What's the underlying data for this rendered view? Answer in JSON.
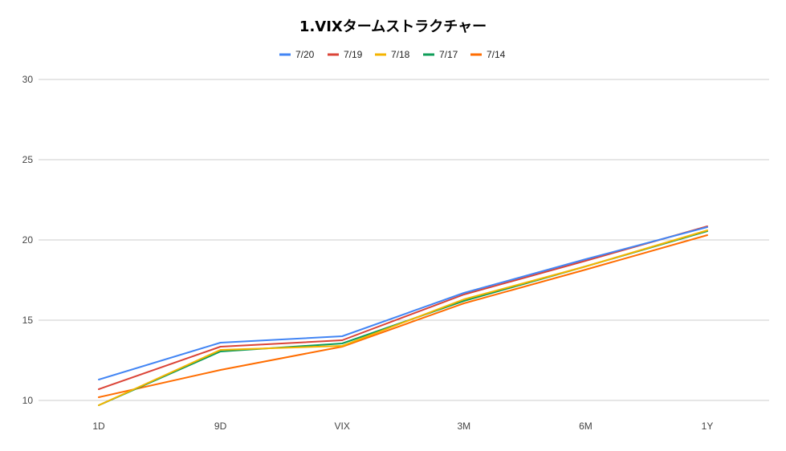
{
  "chart_data": {
    "type": "line",
    "title": "1.VIXタームストラクチャー",
    "categories": [
      "1D",
      "9D",
      "VIX",
      "3M",
      "6M",
      "1Y"
    ],
    "ylim": [
      10,
      30
    ],
    "yticks": [
      10,
      15,
      20,
      25,
      30
    ],
    "grid": true,
    "legend_position": "top",
    "series": [
      {
        "name": "7/20",
        "color": "#4285f4",
        "values": [
          11.3,
          13.6,
          14.0,
          16.7,
          18.8,
          20.8
        ]
      },
      {
        "name": "7/19",
        "color": "#db4437",
        "values": [
          10.7,
          13.35,
          13.75,
          16.6,
          18.7,
          20.85
        ]
      },
      {
        "name": "7/18",
        "color": "#f4b400",
        "values": [
          9.7,
          13.15,
          13.4,
          16.3,
          18.35,
          20.6
        ]
      },
      {
        "name": "7/17",
        "color": "#0f9d58",
        "values": [
          9.7,
          13.05,
          13.55,
          16.2,
          18.35,
          20.55
        ]
      },
      {
        "name": "7/14",
        "color": "#ff6d01",
        "values": [
          10.2,
          11.9,
          13.35,
          16.05,
          18.15,
          20.3
        ]
      }
    ]
  }
}
